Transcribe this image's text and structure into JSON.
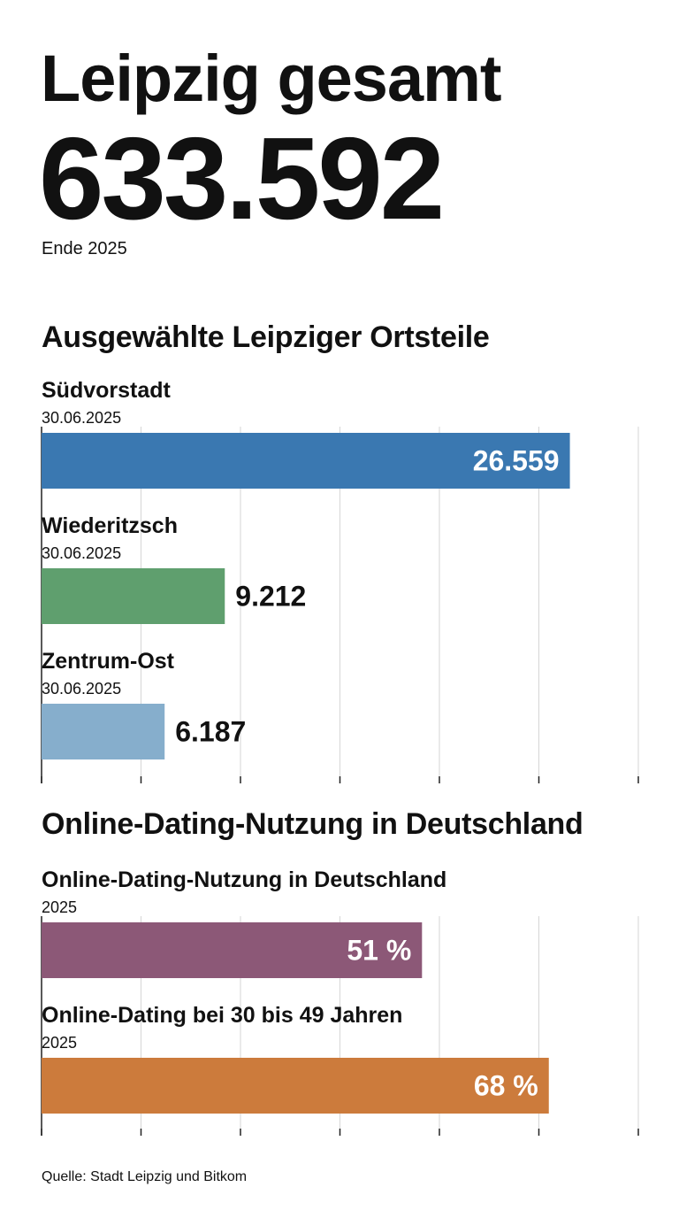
{
  "header": {
    "title": "Leipzig gesamt",
    "total": "633.592",
    "note": "Ende 2025"
  },
  "source": "Quelle: Stadt Leipzig und Bitkom",
  "chart_data": [
    {
      "type": "bar",
      "orientation": "horizontal",
      "title": "Ausgewählte Leipziger Ortsteile",
      "xlim": [
        0,
        30000
      ],
      "grid": true,
      "series": [
        {
          "values": [
            26559,
            9212,
            6187
          ]
        }
      ],
      "categories": [
        "Südvorstadt",
        "Wiederitzsch",
        "Zentrum-Ost"
      ],
      "bars": [
        {
          "label": "Südvorstadt",
          "sublabel": "30.06.2025",
          "value": 26559,
          "value_label": "26.559",
          "color": "#3a78b1",
          "label_inside": true
        },
        {
          "label": "Wiederitzsch",
          "sublabel": "30.06.2025",
          "value": 9212,
          "value_label": "9.212",
          "color": "#5f9f6e",
          "label_inside": false
        },
        {
          "label": "Zentrum-Ost",
          "sublabel": "30.06.2025",
          "value": 6187,
          "value_label": "6.187",
          "color": "#86aecc",
          "label_inside": false
        }
      ]
    },
    {
      "type": "bar",
      "orientation": "horizontal",
      "title": "Online-Dating-Nutzung in Deutschland",
      "xlim": [
        0,
        80
      ],
      "unit": "%",
      "grid": true,
      "series": [
        {
          "values": [
            51,
            68
          ]
        }
      ],
      "categories": [
        "Online-Dating-Nutzung in Deutschland",
        "Online-Dating bei 30 bis 49  Jahren"
      ],
      "bars": [
        {
          "label": "Online-Dating-Nutzung in Deutschland",
          "sublabel": "2025",
          "value": 51,
          "value_label": "51 %",
          "color": "#8c5877",
          "label_inside": true
        },
        {
          "label": "Online-Dating bei 30 bis 49  Jahren",
          "sublabel": "2025",
          "value": 68,
          "value_label": "68 %",
          "color": "#cc7b3c",
          "label_inside": true
        }
      ]
    }
  ]
}
